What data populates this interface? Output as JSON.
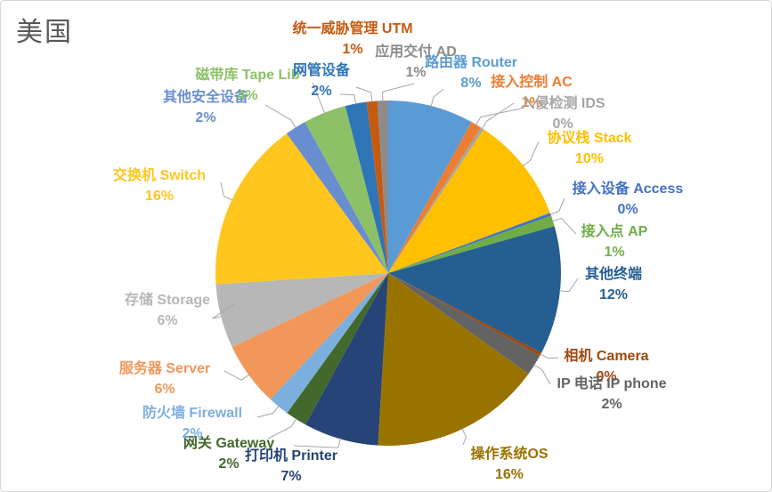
{
  "title": "美国",
  "chart_data": {
    "type": "pie",
    "title": "美国",
    "unit": "%",
    "legend": "none",
    "label_style": "category name + percentage, outside with leader lines",
    "slices": [
      {
        "name": "路由器 Router",
        "pct": "8%",
        "value": 8,
        "color": "#5B9BD5"
      },
      {
        "name": "接入控制 AC",
        "pct": "1%",
        "value": 1,
        "color": "#ED7D31"
      },
      {
        "name": "入侵检测 IDS",
        "pct": "0%",
        "value": 0,
        "color": "#A5A5A5"
      },
      {
        "name": "协议栈 Stack",
        "pct": "10%",
        "value": 10,
        "color": "#FFC000"
      },
      {
        "name": "接入设备 Access",
        "pct": "0%",
        "value": 0,
        "color": "#4472C4"
      },
      {
        "name": "接入点 AP",
        "pct": "1%",
        "value": 1,
        "color": "#70AD47"
      },
      {
        "name": "其他终端",
        "pct": "12%",
        "value": 12,
        "color": "#255E91"
      },
      {
        "name": "相机 Camera",
        "pct": "0%",
        "value": 0,
        "color": "#9E480E"
      },
      {
        "name": "IP 电话 IP phone",
        "pct": "2%",
        "value": 2,
        "color": "#636363"
      },
      {
        "name": "操作系统OS",
        "pct": "16%",
        "value": 16,
        "color": "#997300"
      },
      {
        "name": "打印机 Printer",
        "pct": "7%",
        "value": 7,
        "color": "#264478"
      },
      {
        "name": "网关 Gateway",
        "pct": "2%",
        "value": 2,
        "color": "#43682B"
      },
      {
        "name": "防火墙 Firewall",
        "pct": "2%",
        "value": 2,
        "color": "#7CAFDD"
      },
      {
        "name": "服务器 Server",
        "pct": "6%",
        "value": 6,
        "color": "#F1975A"
      },
      {
        "name": "存储 Storage",
        "pct": "6%",
        "value": 6,
        "color": "#B7B7B7"
      },
      {
        "name": "交换机 Switch",
        "pct": "16%",
        "value": 16,
        "color": "#FFC61E"
      },
      {
        "name": "其他安全设备",
        "pct": "2%",
        "value": 2,
        "color": "#698ED0"
      },
      {
        "name": "磁带库 Tape Lib",
        "pct": "4%",
        "value": 4,
        "color": "#8CC168"
      },
      {
        "name": "网管设备",
        "pct": "2%",
        "value": 2,
        "color": "#2E75B6"
      },
      {
        "name": "统一威胁管理 UTM",
        "pct": "1%",
        "value": 1,
        "color": "#C55A11"
      },
      {
        "name": "应用交付 AD",
        "pct": "1%",
        "value": 1,
        "color": "#8C8C8C"
      }
    ]
  }
}
